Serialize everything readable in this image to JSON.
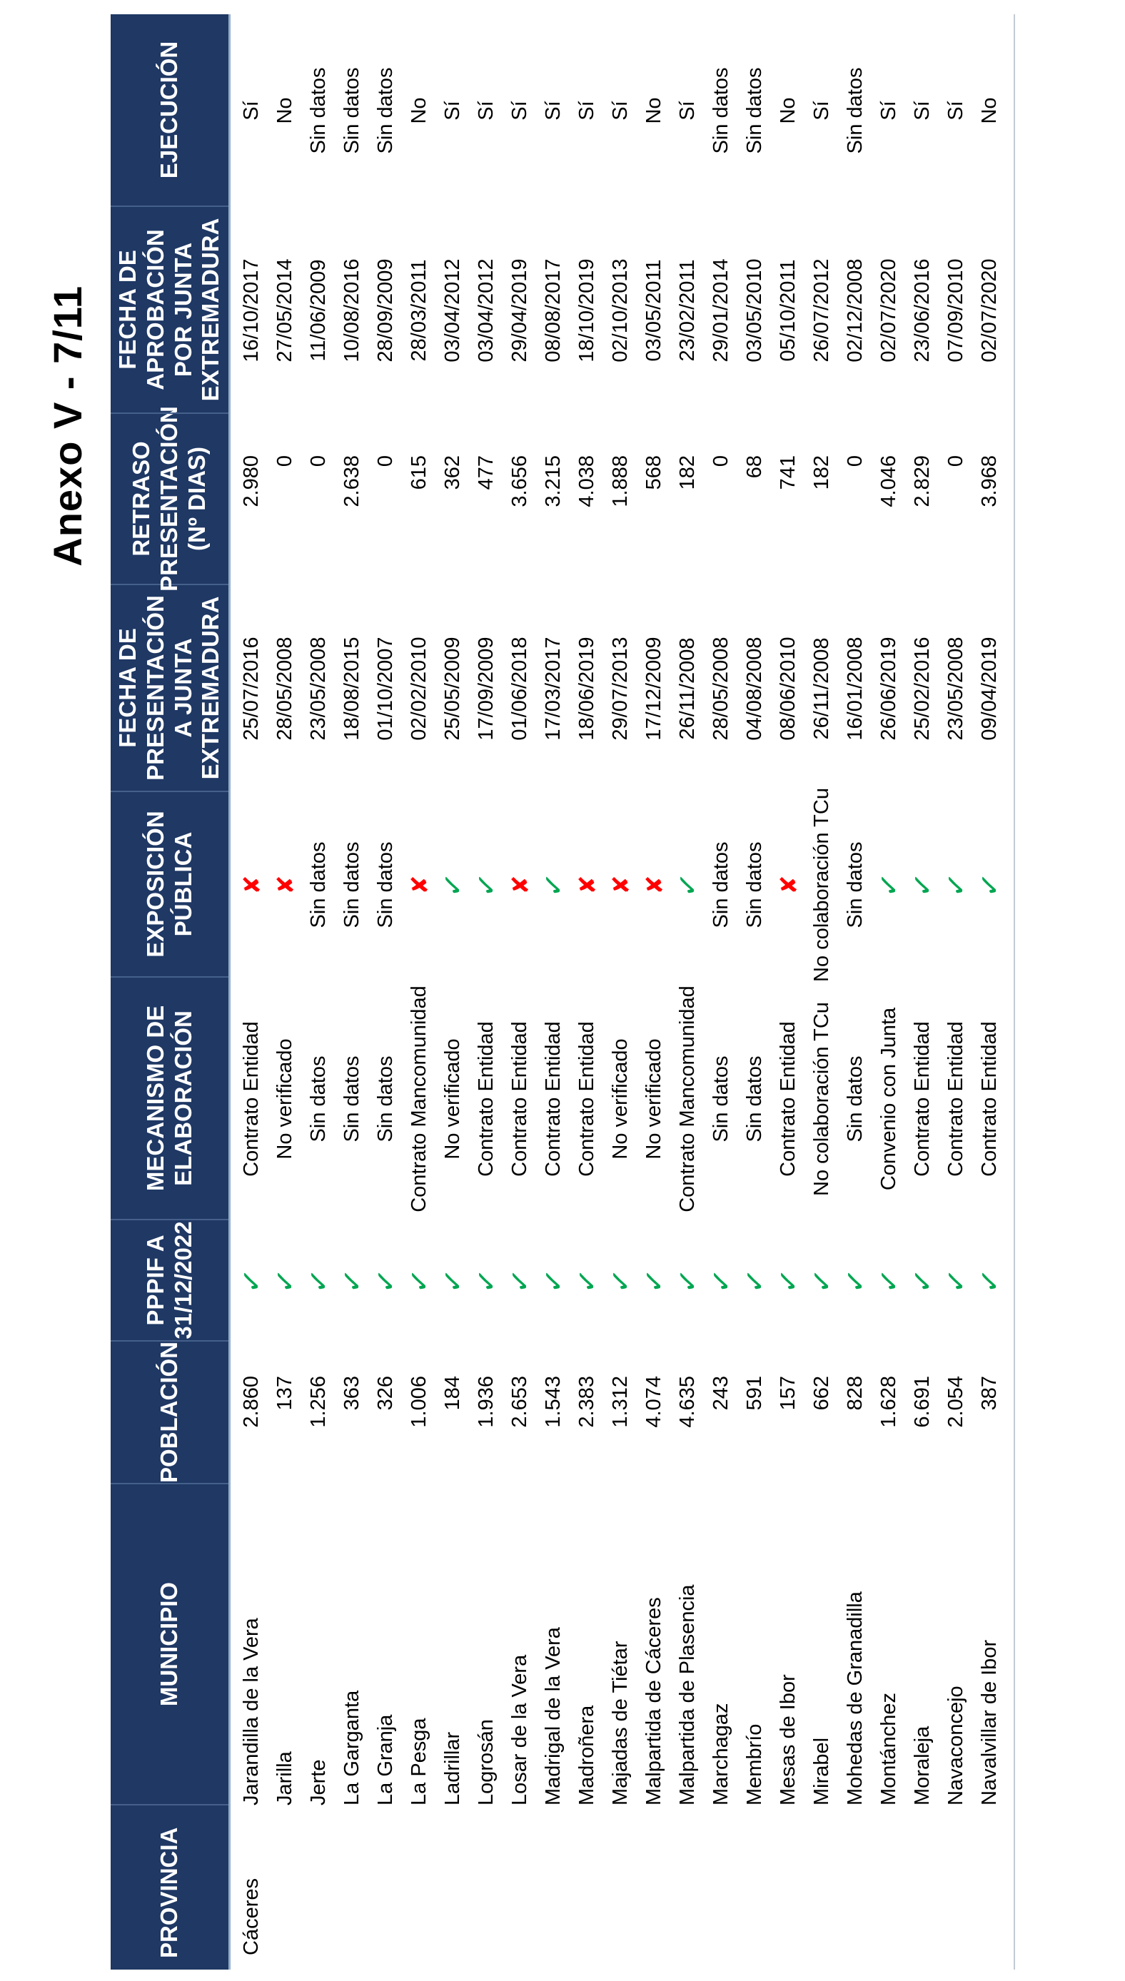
{
  "page": {
    "title": "Anexo V - 7/11"
  },
  "icons": {
    "check_glyph": "✓",
    "cross_glyph": "✘"
  },
  "colors": {
    "header_bg": "#1F3864",
    "header_text": "#FFFFFF",
    "check_green": "#00A651",
    "cross_red": "#FF0000",
    "header_underline_blue": "#94AECB",
    "bottom_rule_gray": "#C3CAD3"
  },
  "table": {
    "headers": [
      "PROVINCIA",
      "MUNICIPIO",
      "POBLACIÓN",
      "PPPIF A\n31/12/2022",
      "MECANISMO DE\nELABORACIÓN",
      "EXPOSICIÓN\nPÚBLICA",
      "FECHA DE\nPRESENTACIÓN\nA JUNTA\nEXTREMADURA",
      "RETRASO\nPRESENTACIÓN\n(Nº DIAS)",
      "FECHA DE\nAPROBACIÓN\nPOR JUNTA\nEXTREMADURA",
      "EJECUCIÓN"
    ],
    "province": "Cáceres",
    "rows": [
      {
        "municipio": "Jarandilla de la Vera",
        "poblacion": "2.860",
        "pppif": "check",
        "mecanismo": "Contrato Entidad",
        "exposicion": "cross",
        "fecha_presentacion": "25/07/2016",
        "retraso": "2.980",
        "fecha_aprobacion": "16/10/2017",
        "ejecucion": "Sí"
      },
      {
        "municipio": "Jarilla",
        "poblacion": "137",
        "pppif": "check",
        "mecanismo": "No verificado",
        "exposicion": "cross",
        "fecha_presentacion": "28/05/2008",
        "retraso": "0",
        "fecha_aprobacion": "27/05/2014",
        "ejecucion": "No"
      },
      {
        "municipio": "Jerte",
        "poblacion": "1.256",
        "pppif": "check",
        "mecanismo": "Sin datos",
        "exposicion": "Sin datos",
        "fecha_presentacion": "23/05/2008",
        "retraso": "0",
        "fecha_aprobacion": "11/06/2009",
        "ejecucion": "Sin datos"
      },
      {
        "municipio": "La Garganta",
        "poblacion": "363",
        "pppif": "check",
        "mecanismo": "Sin datos",
        "exposicion": "Sin datos",
        "fecha_presentacion": "18/08/2015",
        "retraso": "2.638",
        "fecha_aprobacion": "10/08/2016",
        "ejecucion": "Sin datos"
      },
      {
        "municipio": "La Granja",
        "poblacion": "326",
        "pppif": "check",
        "mecanismo": "Sin datos",
        "exposicion": "Sin datos",
        "fecha_presentacion": "01/10/2007",
        "retraso": "0",
        "fecha_aprobacion": "28/09/2009",
        "ejecucion": "Sin datos"
      },
      {
        "municipio": "La Pesga",
        "poblacion": "1.006",
        "pppif": "check",
        "mecanismo": "Contrato Mancomunidad",
        "exposicion": "cross",
        "fecha_presentacion": "02/02/2010",
        "retraso": "615",
        "fecha_aprobacion": "28/03/2011",
        "ejecucion": "No"
      },
      {
        "municipio": "Ladrillar",
        "poblacion": "184",
        "pppif": "check",
        "mecanismo": "No verificado",
        "exposicion": "check",
        "fecha_presentacion": "25/05/2009",
        "retraso": "362",
        "fecha_aprobacion": "03/04/2012",
        "ejecucion": "Sí"
      },
      {
        "municipio": "Logrosán",
        "poblacion": "1.936",
        "pppif": "check",
        "mecanismo": "Contrato Entidad",
        "exposicion": "check",
        "fecha_presentacion": "17/09/2009",
        "retraso": "477",
        "fecha_aprobacion": "03/04/2012",
        "ejecucion": "Sí"
      },
      {
        "municipio": "Losar de la Vera",
        "poblacion": "2.653",
        "pppif": "check",
        "mecanismo": "Contrato Entidad",
        "exposicion": "cross",
        "fecha_presentacion": "01/06/2018",
        "retraso": "3.656",
        "fecha_aprobacion": "29/04/2019",
        "ejecucion": "Sí"
      },
      {
        "municipio": "Madrigal de la Vera",
        "poblacion": "1.543",
        "pppif": "check",
        "mecanismo": "Contrato Entidad",
        "exposicion": "check",
        "fecha_presentacion": "17/03/2017",
        "retraso": "3.215",
        "fecha_aprobacion": "08/08/2017",
        "ejecucion": "Sí"
      },
      {
        "municipio": "Madroñera",
        "poblacion": "2.383",
        "pppif": "check",
        "mecanismo": "Contrato Entidad",
        "exposicion": "cross",
        "fecha_presentacion": "18/06/2019",
        "retraso": "4.038",
        "fecha_aprobacion": "18/10/2019",
        "ejecucion": "Sí"
      },
      {
        "municipio": "Majadas de Tiétar",
        "poblacion": "1.312",
        "pppif": "check",
        "mecanismo": "No verificado",
        "exposicion": "cross",
        "fecha_presentacion": "29/07/2013",
        "retraso": "1.888",
        "fecha_aprobacion": "02/10/2013",
        "ejecucion": "Sí"
      },
      {
        "municipio": "Malpartida de Cáceres",
        "poblacion": "4.074",
        "pppif": "check",
        "mecanismo": "No verificado",
        "exposicion": "cross",
        "fecha_presentacion": "17/12/2009",
        "retraso": "568",
        "fecha_aprobacion": "03/05/2011",
        "ejecucion": "No"
      },
      {
        "municipio": "Malpartida de Plasencia",
        "poblacion": "4.635",
        "pppif": "check",
        "mecanismo": "Contrato Mancomunidad",
        "exposicion": "check",
        "fecha_presentacion": "26/11/2008",
        "retraso": "182",
        "fecha_aprobacion": "23/02/2011",
        "ejecucion": "Sí"
      },
      {
        "municipio": "Marchagaz",
        "poblacion": "243",
        "pppif": "check",
        "mecanismo": "Sin datos",
        "exposicion": "Sin datos",
        "fecha_presentacion": "28/05/2008",
        "retraso": "0",
        "fecha_aprobacion": "29/01/2014",
        "ejecucion": "Sin datos"
      },
      {
        "municipio": "Membrío",
        "poblacion": "591",
        "pppif": "check",
        "mecanismo": "Sin datos",
        "exposicion": "Sin datos",
        "fecha_presentacion": "04/08/2008",
        "retraso": "68",
        "fecha_aprobacion": "03/05/2010",
        "ejecucion": "Sin datos"
      },
      {
        "municipio": "Mesas de Ibor",
        "poblacion": "157",
        "pppif": "check",
        "mecanismo": "Contrato Entidad",
        "exposicion": "cross",
        "fecha_presentacion": "08/06/2010",
        "retraso": "741",
        "fecha_aprobacion": "05/10/2011",
        "ejecucion": "No"
      },
      {
        "municipio": "Mirabel",
        "poblacion": "662",
        "pppif": "check",
        "mecanismo": "No colaboración TCu",
        "exposicion": "No colaboración TCu",
        "fecha_presentacion": "26/11/2008",
        "retraso": "182",
        "fecha_aprobacion": "26/07/2012",
        "ejecucion": "Sí"
      },
      {
        "municipio": "Mohedas de Granadilla",
        "poblacion": "828",
        "pppif": "check",
        "mecanismo": "Sin datos",
        "exposicion": "Sin datos",
        "fecha_presentacion": "16/01/2008",
        "retraso": "0",
        "fecha_aprobacion": "02/12/2008",
        "ejecucion": "Sin datos"
      },
      {
        "municipio": "Montánchez",
        "poblacion": "1.628",
        "pppif": "check",
        "mecanismo": "Convenio con Junta",
        "exposicion": "check",
        "fecha_presentacion": "26/06/2019",
        "retraso": "4.046",
        "fecha_aprobacion": "02/07/2020",
        "ejecucion": "Sí"
      },
      {
        "municipio": "Moraleja",
        "poblacion": "6.691",
        "pppif": "check",
        "mecanismo": "Contrato Entidad",
        "exposicion": "check",
        "fecha_presentacion": "25/02/2016",
        "retraso": "2.829",
        "fecha_aprobacion": "23/06/2016",
        "ejecucion": "Sí"
      },
      {
        "municipio": "Navaconcejo",
        "poblacion": "2.054",
        "pppif": "check",
        "mecanismo": "Contrato Entidad",
        "exposicion": "check",
        "fecha_presentacion": "23/05/2008",
        "retraso": "0",
        "fecha_aprobacion": "07/09/2010",
        "ejecucion": "Sí"
      },
      {
        "municipio": "Navalvillar de Ibor",
        "poblacion": "387",
        "pppif": "check",
        "mecanismo": "Contrato Entidad",
        "exposicion": "check",
        "fecha_presentacion": "09/04/2019",
        "retraso": "3.968",
        "fecha_aprobacion": "02/07/2020",
        "ejecucion": "No"
      }
    ]
  }
}
